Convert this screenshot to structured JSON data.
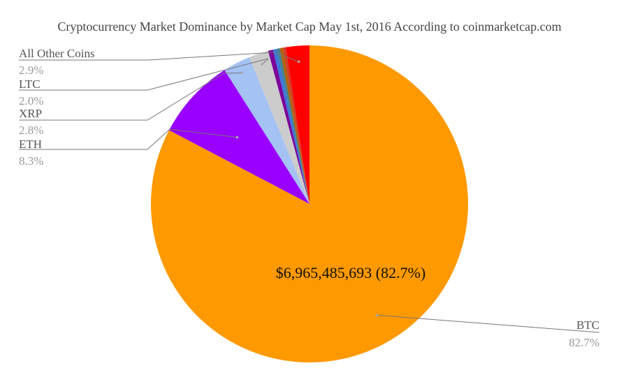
{
  "chart_data": {
    "type": "pie",
    "title": "Cryptocurrency Market Dominance by Market Cap May 1st, 2016 According to coinmarketcap.com",
    "slices": [
      {
        "name": "BTC",
        "pct_label": "82.7%",
        "value": 82.7,
        "color": "#ff9900",
        "value_label": "$6,965,485,693 (82.7%)"
      },
      {
        "name": "ETH",
        "pct_label": "8.3%",
        "value": 8.3,
        "color": "#9900ff"
      },
      {
        "name": "XRP",
        "pct_label": "2.8%",
        "value": 2.8,
        "color": "#a4c2f4"
      },
      {
        "name": "LTC",
        "pct_label": "2.0%",
        "value": 2.0,
        "color": "#cccccc"
      },
      {
        "name": "",
        "value": 0.5,
        "color": "#7b0099"
      },
      {
        "name": "",
        "value": 0.4,
        "color": "#3c78d8"
      },
      {
        "name": "",
        "value": 0.3,
        "color": "#45818e"
      },
      {
        "name": "",
        "value": 0.3,
        "color": "#b45f06"
      },
      {
        "name": "",
        "value": 0.3,
        "color": "#cc4125"
      },
      {
        "name": "",
        "value": 2.4,
        "color": "#ff0000"
      }
    ],
    "labeled_groups": [
      {
        "name": "All Other Coins",
        "pct_label": "2.9%"
      }
    ],
    "legend": "none"
  }
}
